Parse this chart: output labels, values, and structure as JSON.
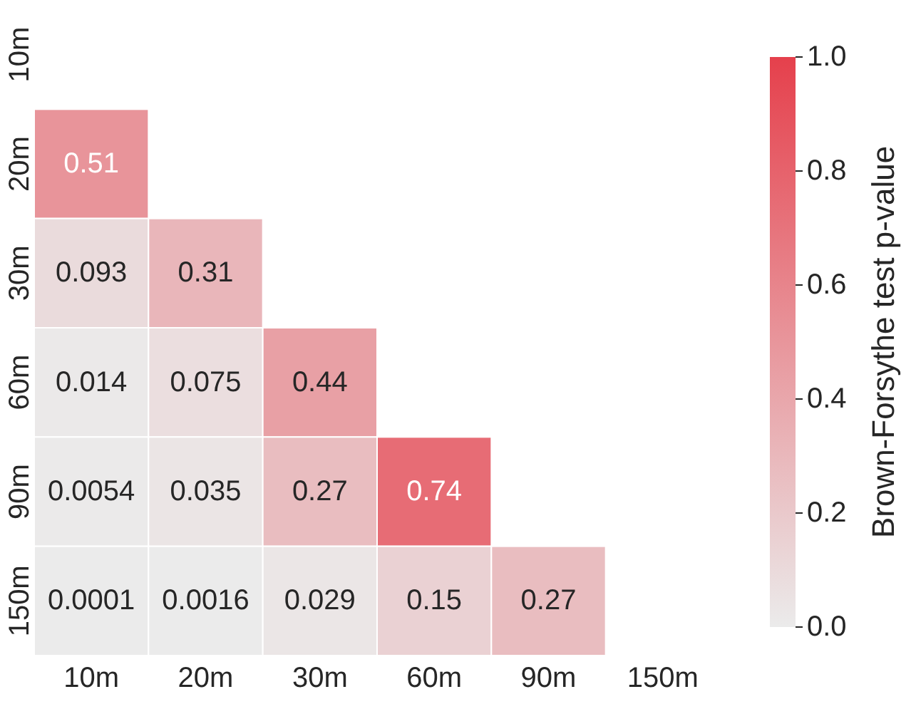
{
  "chart_data": {
    "type": "heatmap",
    "clabel": "Brown-Forsythe test p-value",
    "categories": [
      "10m",
      "20m",
      "30m",
      "60m",
      "90m",
      "150m"
    ],
    "y_categories": [
      "10m",
      "20m",
      "30m",
      "60m",
      "90m",
      "150m"
    ],
    "cells": [
      [
        null,
        null,
        null,
        null,
        null,
        null
      ],
      [
        0.51,
        null,
        null,
        null,
        null,
        null
      ],
      [
        0.093,
        0.31,
        null,
        null,
        null,
        null
      ],
      [
        0.014,
        0.075,
        0.44,
        null,
        null,
        null
      ],
      [
        0.0054,
        0.035,
        0.27,
        0.74,
        null,
        null
      ],
      [
        0.0001,
        0.0016,
        0.029,
        0.15,
        0.27,
        null
      ]
    ],
    "clim": [
      0,
      1
    ],
    "cticks": [
      {
        "value": 0,
        "label": "0.0"
      },
      {
        "value": 0.2,
        "label": "0.2"
      },
      {
        "value": 0.4,
        "label": "0.4"
      },
      {
        "value": 0.6,
        "label": "0.6"
      },
      {
        "value": 0.8,
        "label": "0.8"
      },
      {
        "value": 1,
        "label": "1.0"
      }
    ],
    "colors": [
      "#ebebeb",
      "#e5404c"
    ],
    "data_labels": true
  }
}
